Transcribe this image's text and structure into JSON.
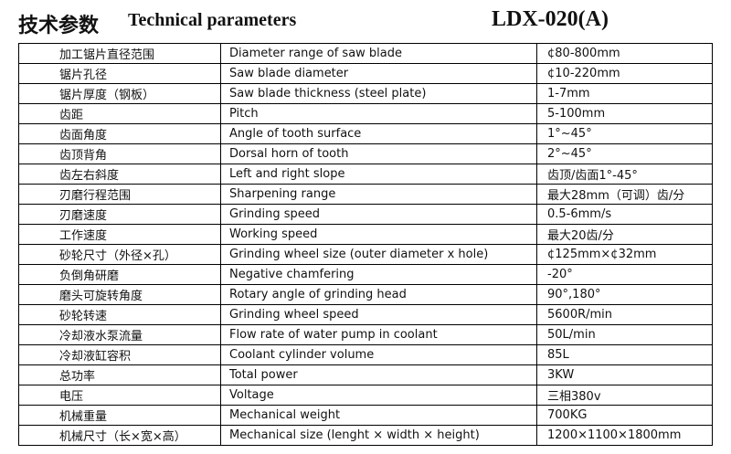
{
  "header": {
    "title_cn": "技术参数",
    "title_en": "Technical parameters",
    "model": "LDX-020(A)"
  },
  "table": {
    "rows": [
      [
        "加工锯片直径范围",
        "Diameter range of saw blade",
        "¢80-800mm"
      ],
      [
        "锯片孔径",
        "Saw blade diameter",
        "¢10-220mm"
      ],
      [
        "锯片厚度（钢板）",
        "Saw blade thickness (steel plate)",
        "1-7mm"
      ],
      [
        "齿距",
        "Pitch",
        "5-100mm"
      ],
      [
        "齿面角度",
        "Angle of tooth surface",
        "1°~45°"
      ],
      [
        "齿顶背角",
        "Dorsal horn of tooth",
        "2°~45°"
      ],
      [
        "齿左右斜度",
        "Left and right slope",
        "齿顶/齿面1°-45°"
      ],
      [
        "刃磨行程范围",
        "Sharpening range",
        "最大28mm（可调）齿/分"
      ],
      [
        "刃磨速度",
        "Grinding speed",
        "0.5-6mm/s"
      ],
      [
        "工作速度",
        "Working speed",
        "最大20齿/分"
      ],
      [
        "砂轮尺寸（外径×孔）",
        "Grinding wheel size (outer diameter x hole)",
        "¢125mm×¢32mm"
      ],
      [
        "负倒角研磨",
        "Negative chamfering",
        "-20°"
      ],
      [
        "磨头可旋转角度",
        "Rotary angle of grinding head",
        "90°,180°"
      ],
      [
        "砂轮转速",
        "Grinding wheel speed",
        "5600R/min"
      ],
      [
        "冷却液水泵流量",
        "Flow rate of water pump in coolant",
        "50L/min"
      ],
      [
        "冷却液缸容积",
        "Coolant cylinder volume",
        "85L"
      ],
      [
        "总功率",
        "Total power",
        "3KW"
      ],
      [
        "电压",
        "Voltage",
        "三相380v"
      ],
      [
        "机械重量",
        "Mechanical weight",
        "700KG"
      ],
      [
        "机械尺寸（长×宽×高）",
        "Mechanical size (lenght × width × height)",
        "1200×1100×1800mm"
      ]
    ]
  }
}
